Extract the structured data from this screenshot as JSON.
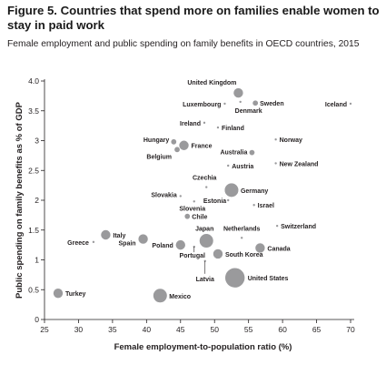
{
  "figure": {
    "title": "Figure 5. Countries that spend more on families enable women to stay in paid work",
    "subtitle": "Female employment and public spending on family benefits in OECD countries, 2015"
  },
  "chart_data": {
    "type": "scatter",
    "title": "Figure 5. Countries that spend more on families enable women to stay in paid work",
    "subtitle": "Female employment and public spending on family benefits in OECD countries, 2015",
    "xlabel": "Female employment-to-population ratio (%)",
    "ylabel": "Public spending on family benefits as % of GDP",
    "xlim": [
      25,
      70
    ],
    "ylim": [
      0,
      4.0
    ],
    "x_ticks": [
      "25",
      "30",
      "35",
      "40",
      "45",
      "50",
      "55",
      "60",
      "65",
      "70"
    ],
    "y_ticks": [
      "0",
      "0.5",
      "1",
      "1.5",
      "2",
      "2.5",
      "3",
      "3.5",
      "4.0"
    ],
    "grid": false,
    "legend": "none",
    "colors": {
      "point": "#9a9a9c",
      "axis": "#231f20"
    },
    "points": [
      {
        "label": "United Kingdom",
        "x": 53.5,
        "y": 3.8,
        "size": "medium"
      },
      {
        "label": "Luxembourg",
        "x": 51.5,
        "y": 3.62,
        "size": "tiny"
      },
      {
        "label": "Denmark",
        "x": 53.8,
        "y": 3.65,
        "size": "tiny"
      },
      {
        "label": "Sweden",
        "x": 56.0,
        "y": 3.63,
        "size": "small"
      },
      {
        "label": "Iceland",
        "x": 70.0,
        "y": 3.62,
        "size": "tiny"
      },
      {
        "label": "Ireland",
        "x": 48.5,
        "y": 3.3,
        "size": "tiny"
      },
      {
        "label": "Finland",
        "x": 50.5,
        "y": 3.22,
        "size": "tiny"
      },
      {
        "label": "Hungary",
        "x": 44.0,
        "y": 2.98,
        "size": "small"
      },
      {
        "label": "France",
        "x": 45.5,
        "y": 2.92,
        "size": "medium"
      },
      {
        "label": "Belgium",
        "x": 44.5,
        "y": 2.85,
        "size": "small"
      },
      {
        "label": "Norway",
        "x": 59.0,
        "y": 3.02,
        "size": "tiny"
      },
      {
        "label": "Australia",
        "x": 55.5,
        "y": 2.8,
        "size": "small"
      },
      {
        "label": "Austria",
        "x": 52.0,
        "y": 2.58,
        "size": "tiny"
      },
      {
        "label": "New Zealand",
        "x": 59.0,
        "y": 2.62,
        "size": "tiny"
      },
      {
        "label": "Czechia",
        "x": 48.8,
        "y": 2.22,
        "size": "tiny"
      },
      {
        "label": "Germany",
        "x": 52.5,
        "y": 2.17,
        "size": "large"
      },
      {
        "label": "Slovakia",
        "x": 45.0,
        "y": 2.07,
        "size": "tiny"
      },
      {
        "label": "Estonia",
        "x": 52.0,
        "y": 2.0,
        "size": "tiny"
      },
      {
        "label": "Slovenia",
        "x": 47.0,
        "y": 1.98,
        "size": "tiny"
      },
      {
        "label": "Israel",
        "x": 55.8,
        "y": 1.92,
        "size": "tiny"
      },
      {
        "label": "Chile",
        "x": 46.0,
        "y": 1.73,
        "size": "small"
      },
      {
        "label": "Switzerland",
        "x": 59.2,
        "y": 1.57,
        "size": "tiny"
      },
      {
        "label": "Italy",
        "x": 34.0,
        "y": 1.42,
        "size": "medium"
      },
      {
        "label": "Greece",
        "x": 32.2,
        "y": 1.3,
        "size": "tiny"
      },
      {
        "label": "Spain",
        "x": 39.5,
        "y": 1.35,
        "size": "medium"
      },
      {
        "label": "Japan",
        "x": 48.8,
        "y": 1.32,
        "size": "large"
      },
      {
        "label": "Netherlands",
        "x": 54.0,
        "y": 1.37,
        "size": "tiny"
      },
      {
        "label": "Poland",
        "x": 45.0,
        "y": 1.25,
        "size": "medium"
      },
      {
        "label": "Portugal",
        "x": 47.0,
        "y": 1.22,
        "size": "tiny"
      },
      {
        "label": "Canada",
        "x": 56.7,
        "y": 1.2,
        "size": "medium"
      },
      {
        "label": "South Korea",
        "x": 50.5,
        "y": 1.1,
        "size": "medium"
      },
      {
        "label": "Latvia",
        "x": 48.6,
        "y": 0.98,
        "size": "tiny"
      },
      {
        "label": "United States",
        "x": 53.0,
        "y": 0.7,
        "size": "xlarge"
      },
      {
        "label": "Turkey",
        "x": 27.0,
        "y": 0.44,
        "size": "medium"
      },
      {
        "label": "Mexico",
        "x": 42.0,
        "y": 0.4,
        "size": "large"
      }
    ]
  }
}
